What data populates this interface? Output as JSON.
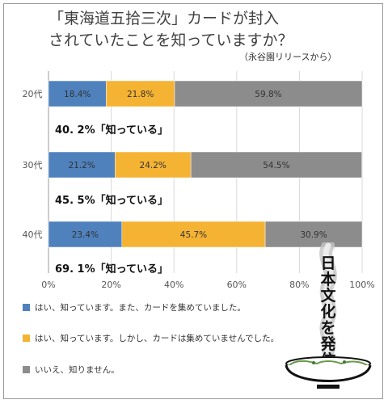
{
  "title_line1": "「東海道五拾三次」カードが封入",
  "title_line2": "されていたことを知っていますか？",
  "subtitle": "（永谷園リリースから）",
  "chart_data": {
    "type": "bar",
    "orientation": "horizontal",
    "stacked": true,
    "categories": [
      "20代",
      "30代",
      "40代"
    ],
    "series": [
      {
        "name": "はい、知っています。また、カードを集めていました。",
        "values": [
          18.4,
          21.2,
          23.4
        ],
        "labels": [
          "18.4%",
          "21.2%",
          "23.4%"
        ],
        "color": "#4f81bd"
      },
      {
        "name": "はい、知っています。しかし、カードは集めていませんでした。",
        "values": [
          21.8,
          24.2,
          45.7
        ],
        "labels": [
          "21.8%",
          "24.2%",
          "45.7%"
        ],
        "color": "#f5b334"
      },
      {
        "name": "いいえ、知りません。",
        "values": [
          59.8,
          54.5,
          30.9
        ],
        "labels": [
          "59.8%",
          "54.5%",
          "30.9%"
        ],
        "color": "#8c8c8c"
      }
    ],
    "xlim": [
      0,
      100
    ],
    "xticks": [
      "0%",
      "20%",
      "40%",
      "60%",
      "80%",
      "100%"
    ],
    "grid": true,
    "legend": "bottom-left",
    "annotations": [
      "40. 2%「知っている」",
      "45. 5%「知っている」",
      "69. 1%「知っている」"
    ]
  },
  "badge": {
    "text": "日本文化を発信",
    "colors": {
      "ink": "#111111",
      "steam": "#bbbbbb"
    }
  }
}
